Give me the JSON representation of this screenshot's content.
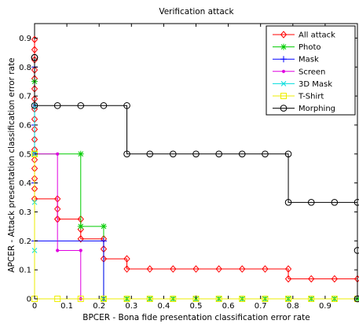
{
  "chart_data": {
    "type": "line",
    "title": "Verification attack",
    "xlabel": "BPCER - Bona fide presentation classification error rate",
    "ylabel": "APCER - Attack presentation classification error rate",
    "xlim": [
      0,
      1
    ],
    "ylim": [
      0,
      0.95
    ],
    "xticks": [
      "0",
      "0.1",
      "0.2",
      "0.3",
      "0.4",
      "0.5",
      "0.6",
      "0.7",
      "0.8",
      "0.9"
    ],
    "yticks": [
      "0",
      "0.1",
      "0.2",
      "0.3",
      "0.4",
      "0.5",
      "0.6",
      "0.7",
      "0.8",
      "0.9"
    ],
    "grid": false,
    "legend_position": "top-right",
    "series": [
      {
        "name": "All attack",
        "color": "#ff0000",
        "marker": "diamond",
        "x": [
          0,
          0,
          0,
          0,
          0,
          0,
          0,
          0,
          0,
          0,
          0,
          0,
          0,
          0,
          0,
          0,
          0,
          0.071,
          0.071,
          0.071,
          0.071,
          0.143,
          0.143,
          0.143,
          0.214,
          0.214,
          0.214,
          0.286,
          0.286,
          0.357,
          0.429,
          0.5,
          0.571,
          0.643,
          0.714,
          0.786,
          0.786,
          0.857,
          0.929,
          1.0
        ],
        "y": [
          0.895,
          0.86,
          0.825,
          0.79,
          0.76,
          0.725,
          0.69,
          0.655,
          0.62,
          0.585,
          0.55,
          0.515,
          0.48,
          0.45,
          0.415,
          0.38,
          0.345,
          0.345,
          0.31,
          0.275,
          0.275,
          0.275,
          0.24,
          0.207,
          0.207,
          0.172,
          0.138,
          0.138,
          0.103,
          0.103,
          0.103,
          0.103,
          0.103,
          0.103,
          0.103,
          0.103,
          0.069,
          0.069,
          0.069,
          0.069
        ]
      },
      {
        "name": "Photo",
        "color": "#00cc00",
        "marker": "star",
        "x": [
          0,
          0,
          0,
          0.143,
          0.143,
          0.214,
          0.214,
          0.286,
          0.357,
          0.429,
          0.5,
          0.571,
          0.643,
          0.714,
          0.786,
          0.857,
          0.929,
          1.0
        ],
        "y": [
          0.75,
          0.5,
          0.5,
          0.5,
          0.25,
          0.25,
          0,
          0,
          0,
          0,
          0,
          0,
          0,
          0,
          0,
          0,
          0,
          0
        ]
      },
      {
        "name": "Mask",
        "color": "#0000ff",
        "marker": "plus",
        "x": [
          0,
          0,
          0,
          0,
          0.214,
          0.214
        ],
        "y": [
          0.8,
          0.6,
          0.4,
          0.2,
          0.2,
          0
        ]
      },
      {
        "name": "Screen",
        "color": "#e000e0",
        "marker": "point",
        "x": [
          0,
          0,
          0,
          0.071,
          0.071,
          0.143,
          0.143
        ],
        "y": [
          0.667,
          0.5,
          0.5,
          0.5,
          0.167,
          0.167,
          0
        ]
      },
      {
        "name": "3D Mask",
        "color": "#00dddd",
        "marker": "x",
        "x": [
          0,
          0,
          0,
          0
        ],
        "y": [
          0.667,
          0.5,
          0.333,
          0.167
        ]
      },
      {
        "name": "T-Shirt",
        "color": "#eeee00",
        "marker": "square",
        "x": [
          0,
          0,
          0,
          0.071,
          0.143,
          0.214,
          0.286,
          0.357,
          0.429,
          0.5,
          0.571,
          0.643,
          0.714,
          0.786,
          0.857,
          0.929,
          1.0
        ],
        "y": [
          0.5,
          0.5,
          0,
          0,
          0,
          0,
          0,
          0,
          0,
          0,
          0,
          0,
          0,
          0,
          0,
          0,
          0
        ]
      },
      {
        "name": "Morphing",
        "color": "#000000",
        "marker": "circle",
        "x": [
          0,
          0,
          0,
          0.071,
          0.143,
          0.214,
          0.286,
          0.286,
          0.357,
          0.429,
          0.5,
          0.571,
          0.643,
          0.714,
          0.786,
          0.786,
          0.857,
          0.929,
          1.0,
          1.0,
          1.0
        ],
        "y": [
          0.833,
          0.833,
          0.667,
          0.667,
          0.667,
          0.667,
          0.667,
          0.5,
          0.5,
          0.5,
          0.5,
          0.5,
          0.5,
          0.5,
          0.5,
          0.333,
          0.333,
          0.333,
          0.333,
          0.167,
          0
        ]
      }
    ]
  }
}
